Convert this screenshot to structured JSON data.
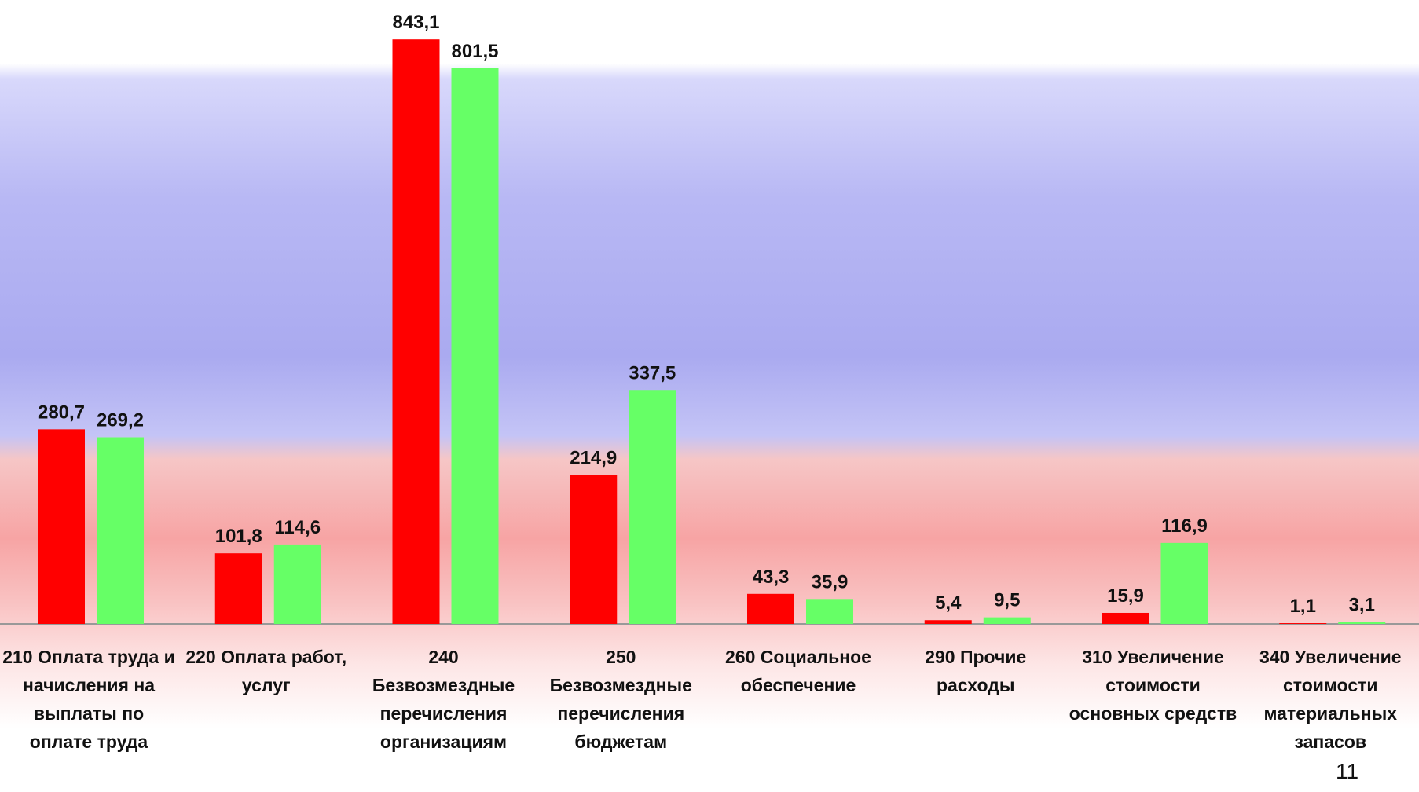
{
  "chart_data": {
    "type": "bar",
    "categories": [
      "210 Оплата труда и начисления на выплаты по оплате труда",
      "220 Оплата работ, услуг",
      "240 Безвозмездные перечисления организациям",
      "250 Безвозмездные перечисления бюджетам",
      "260 Социальное обеспечение",
      "290 Прочие расходы",
      "310 Увеличение стоимости основных средств",
      "340 Увеличение стоимости материальных запасов"
    ],
    "series": [
      {
        "color": "#ff0000",
        "values": [
          280.7,
          101.8,
          843.1,
          214.9,
          43.3,
          5.4,
          15.9,
          1.1
        ],
        "value_labels": [
          "280,7",
          "101,8",
          "843,1",
          "214,9",
          "43,3",
          "5,4",
          "15,9",
          "1,1"
        ]
      },
      {
        "color": "#66ff66",
        "values": [
          269.2,
          114.6,
          801.5,
          337.5,
          35.9,
          9.5,
          116.9,
          3.1
        ],
        "value_labels": [
          "269,2",
          "114,6",
          "801,5",
          "337,5",
          "35,9",
          "9,5",
          "116,9",
          "3,1"
        ]
      }
    ],
    "ylim": [
      0,
      900
    ],
    "page_number": "11"
  }
}
